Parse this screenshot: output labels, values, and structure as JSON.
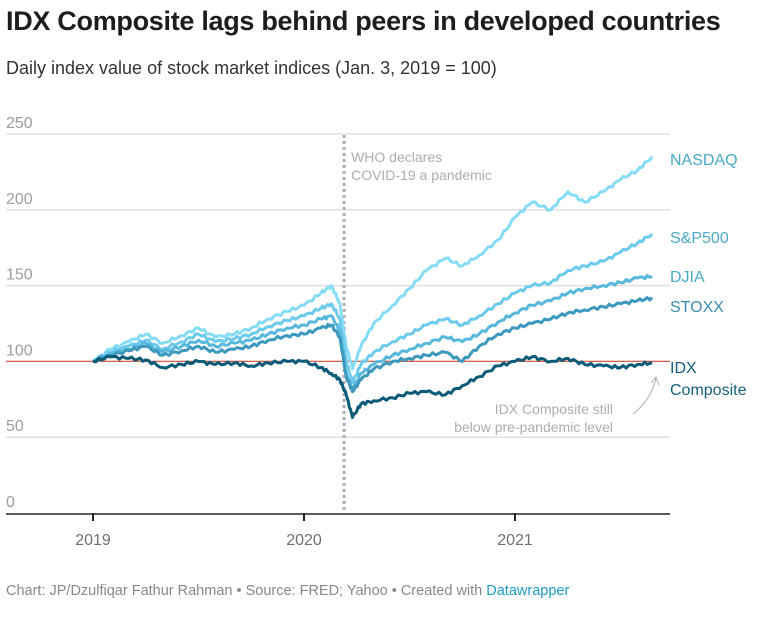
{
  "title": "IDX Composite lags behind peers in developed countries",
  "subtitle": "Daily index value of stock market indices (Jan. 3, 2019 = 100)",
  "footer": {
    "text": "Chart: JP/Dzulfiqar Fathur Rahman • Source: FRED; Yahoo • Created with ",
    "link": "Datawrapper",
    "link_color": "#1d9bc4"
  },
  "chart_data": {
    "type": "line",
    "title": "IDX Composite lags behind peers in developed countries",
    "subtitle": "Daily index value of stock market indices (Jan. 3, 2019 = 100)",
    "xlabel": "",
    "ylabel": "",
    "ylim": [
      0,
      250
    ],
    "yticks": [
      "0",
      "50",
      "100",
      "150",
      "200",
      "250"
    ],
    "ytick_values": [
      0,
      50,
      100,
      150,
      200,
      250
    ],
    "xticks": [
      "2019",
      "2020",
      "2021"
    ],
    "xtick_values": [
      2019.0,
      2020.0,
      2021.0
    ],
    "xlim": [
      2018.75,
      2021.75
    ],
    "grid": true,
    "reference_line": {
      "value": 100,
      "color": "#d9604c"
    },
    "x": [
      2019.0,
      2019.08,
      2019.17,
      2019.25,
      2019.33,
      2019.42,
      2019.5,
      2019.58,
      2019.67,
      2019.75,
      2019.83,
      2019.92,
      2020.0,
      2020.08,
      2020.13,
      2020.17,
      2020.2,
      2020.23,
      2020.27,
      2020.33,
      2020.42,
      2020.5,
      2020.58,
      2020.67,
      2020.75,
      2020.83,
      2020.92,
      2021.0,
      2021.08,
      2021.17,
      2021.25,
      2021.33,
      2021.42,
      2021.5,
      2021.58,
      2021.65
    ],
    "series": [
      {
        "name": "NASDAQ",
        "color": "#86dcf7",
        "label_color": "#4aa9c4",
        "values": [
          100,
          108,
          113,
          118,
          112,
          117,
          122,
          116,
          118,
          122,
          128,
          133,
          137,
          145,
          150,
          138,
          110,
          95,
          110,
          125,
          137,
          148,
          160,
          168,
          163,
          170,
          180,
          195,
          205,
          200,
          212,
          205,
          212,
          220,
          226,
          235
        ]
      },
      {
        "name": "S&P500",
        "color": "#6ccbec",
        "label_color": "#4aa9c4",
        "values": [
          100,
          106,
          110,
          114,
          108,
          113,
          118,
          113,
          115,
          118,
          123,
          127,
          130,
          135,
          138,
          128,
          100,
          86,
          98,
          106,
          113,
          118,
          124,
          128,
          124,
          130,
          138,
          145,
          150,
          152,
          160,
          163,
          166,
          172,
          178,
          184
        ]
      },
      {
        "name": "DJIA",
        "color": "#57b8dc",
        "label_color": "#4aa9c4",
        "values": [
          100,
          105,
          108,
          112,
          106,
          110,
          114,
          110,
          112,
          114,
          118,
          122,
          124,
          128,
          130,
          120,
          92,
          82,
          92,
          98,
          104,
          108,
          112,
          116,
          113,
          118,
          126,
          132,
          137,
          140,
          145,
          148,
          150,
          152,
          155,
          156
        ]
      },
      {
        "name": "STOXX",
        "color": "#3d98bd",
        "label_color": "#3d8fb1",
        "values": [
          100,
          104,
          107,
          110,
          104,
          107,
          110,
          106,
          108,
          110,
          114,
          117,
          118,
          122,
          124,
          116,
          90,
          80,
          88,
          95,
          100,
          102,
          104,
          106,
          100,
          110,
          118,
          122,
          125,
          128,
          132,
          134,
          136,
          138,
          140,
          142
        ]
      },
      {
        "name": "IDX Composite",
        "label_lines": [
          "IDX",
          "Composite"
        ],
        "color": "#0b5b78",
        "label_color": "#145f7c",
        "values": [
          100,
          103,
          102,
          101,
          96,
          98,
          100,
          98,
          99,
          97,
          99,
          100,
          100,
          96,
          92,
          88,
          78,
          63,
          72,
          74,
          76,
          79,
          80,
          78,
          84,
          90,
          97,
          100,
          103,
          100,
          102,
          98,
          97,
          96,
          98,
          99
        ]
      }
    ],
    "annotations": [
      {
        "text_lines": [
          "WHO declares",
          "COVID-19 a pandemic"
        ],
        "x": 2020.19,
        "type": "vertical-dotted-line"
      },
      {
        "text_lines": [
          "IDX Composite still",
          "below pre-pandemic level"
        ],
        "x": 2021.6,
        "y": 99,
        "type": "arrow-note"
      }
    ]
  }
}
